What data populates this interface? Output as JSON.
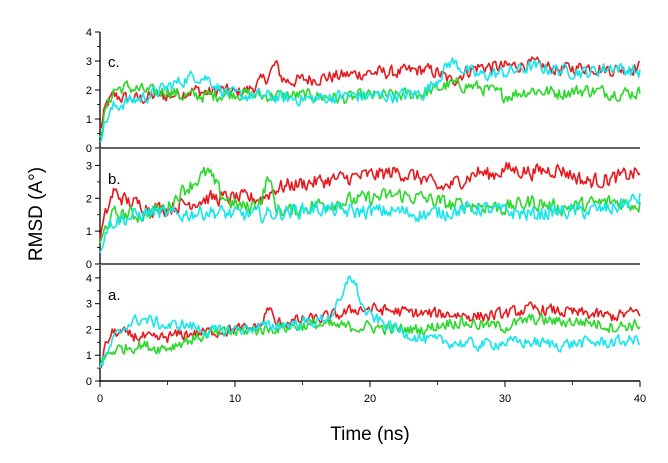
{
  "chart_data": {
    "type": "line",
    "xlabel": "Time (ns)",
    "ylabel": "RMSD (A°)",
    "xlim": [
      0,
      40
    ],
    "x_ticks": [
      "0",
      "10",
      "20",
      "30",
      "40"
    ],
    "grid": false,
    "legend": "none",
    "series_colors": [
      "#e8191c",
      "#2ad92a",
      "#16e6ec"
    ],
    "panels": [
      {
        "label": "c.",
        "ylim": [
          0,
          4
        ],
        "y_ticks": [
          "0",
          "1",
          "2",
          "3",
          "4"
        ],
        "series": [
          {
            "color": "#e8191c",
            "x": [
              0,
              0.5,
              1,
              2,
              3,
              4,
              5,
              6,
              7,
              8,
              9,
              10,
              11,
              12,
              12.5,
              13,
              13.5,
              14,
              16,
              18,
              20,
              22,
              24,
              25,
              26,
              27,
              28,
              30,
              32,
              34,
              36,
              38,
              40
            ],
            "y": [
              0.6,
              1.5,
              1.8,
              1.7,
              1.7,
              1.8,
              1.8,
              1.9,
              2.0,
              1.9,
              2.0,
              1.9,
              2.0,
              2.3,
              2.5,
              2.9,
              2.4,
              2.3,
              2.4,
              2.5,
              2.6,
              2.6,
              2.7,
              2.6,
              2.3,
              2.6,
              2.8,
              2.8,
              2.9,
              2.7,
              2.8,
              2.7,
              2.8
            ]
          },
          {
            "color": "#2ad92a",
            "x": [
              0,
              0.5,
              1,
              2,
              3,
              4,
              5,
              6,
              8,
              10,
              12,
              14,
              16,
              18,
              20,
              22,
              24,
              26,
              28,
              30,
              32,
              34,
              36,
              38,
              40
            ],
            "y": [
              0.5,
              1.4,
              2.0,
              2.1,
              2.0,
              1.9,
              2.0,
              1.8,
              1.8,
              1.9,
              1.8,
              1.8,
              1.8,
              1.7,
              1.8,
              1.8,
              1.9,
              2.2,
              2.1,
              1.8,
              2.0,
              1.9,
              2.0,
              1.9,
              1.9
            ]
          },
          {
            "color": "#16e6ec",
            "x": [
              0,
              0.5,
              1,
              2,
              3,
              4,
              5,
              6,
              7,
              8,
              9,
              10,
              12,
              14,
              16,
              18,
              20,
              22,
              24,
              25,
              26,
              27,
              28,
              30,
              32,
              34,
              36,
              38,
              40
            ],
            "y": [
              0.4,
              1.0,
              1.4,
              1.6,
              1.7,
              1.9,
              2.1,
              2.3,
              2.5,
              2.4,
              2.0,
              1.8,
              1.8,
              1.7,
              1.7,
              1.8,
              1.8,
              1.8,
              1.9,
              2.4,
              3.0,
              2.7,
              2.5,
              2.6,
              2.8,
              2.7,
              2.6,
              2.8,
              2.6
            ]
          }
        ]
      },
      {
        "label": "b.",
        "ylim": [
          0,
          3.5
        ],
        "y_ticks": [
          "0",
          "1",
          "2",
          "3"
        ],
        "series": [
          {
            "color": "#e8191c",
            "x": [
              0,
              0.5,
              1,
              2,
              3,
              4,
              5,
              6,
              8,
              10,
              12,
              13,
              14,
              16,
              18,
              20,
              22,
              24,
              25,
              26,
              27,
              28,
              29,
              30,
              32,
              34,
              36,
              38,
              40
            ],
            "y": [
              0.8,
              1.6,
              2.2,
              1.9,
              1.8,
              1.7,
              1.7,
              1.8,
              2.0,
              2.0,
              2.0,
              2.3,
              2.4,
              2.5,
              2.6,
              2.7,
              2.8,
              2.6,
              2.3,
              2.4,
              2.6,
              2.8,
              2.7,
              2.9,
              2.8,
              2.9,
              2.5,
              2.6,
              2.8
            ]
          },
          {
            "color": "#2ad92a",
            "x": [
              0,
              0.5,
              1,
              2,
              3,
              4,
              5,
              6,
              7,
              8,
              9,
              10,
              11,
              12,
              12.5,
              13,
              14,
              16,
              18,
              20,
              22,
              24,
              26,
              28,
              30,
              32,
              34,
              36,
              38,
              40
            ],
            "y": [
              0.5,
              1.2,
              1.5,
              1.5,
              1.5,
              1.6,
              1.7,
              2.2,
              2.5,
              2.8,
              2.1,
              1.8,
              1.7,
              2.0,
              2.7,
              1.7,
              1.6,
              1.8,
              1.9,
              2.0,
              2.1,
              2.0,
              1.8,
              1.8,
              1.7,
              1.9,
              1.7,
              1.8,
              1.9,
              1.8
            ]
          },
          {
            "color": "#16e6ec",
            "x": [
              0,
              0.5,
              1,
              2,
              3,
              4,
              5,
              6,
              8,
              10,
              12,
              14,
              16,
              18,
              20,
              22,
              24,
              26,
              28,
              30,
              32,
              34,
              36,
              38,
              40
            ],
            "y": [
              0.5,
              1.1,
              1.3,
              1.4,
              1.5,
              1.6,
              1.5,
              1.5,
              1.6,
              1.5,
              1.5,
              1.6,
              1.7,
              1.6,
              1.6,
              1.6,
              1.5,
              1.6,
              1.7,
              1.6,
              1.5,
              1.6,
              1.6,
              1.7,
              2.0
            ]
          }
        ]
      },
      {
        "label": "a.",
        "ylim": [
          0,
          4.5
        ],
        "y_ticks": [
          "0",
          "1",
          "2",
          "3",
          "4"
        ],
        "series": [
          {
            "color": "#e8191c",
            "x": [
              0,
              0.5,
              1,
              2,
              3,
              4,
              5,
              6,
              8,
              10,
              11,
              12,
              12.5,
              13,
              14,
              16,
              18,
              19,
              20,
              22,
              24,
              26,
              28,
              30,
              32,
              34,
              36,
              38,
              40
            ],
            "y": [
              0.5,
              1.5,
              1.9,
              1.8,
              1.7,
              1.6,
              1.7,
              1.8,
              1.9,
              2.0,
              2.0,
              2.2,
              2.9,
              2.2,
              2.3,
              2.4,
              2.6,
              2.8,
              2.8,
              2.7,
              2.6,
              2.6,
              2.5,
              2.6,
              2.8,
              2.7,
              2.6,
              2.5,
              2.7
            ]
          },
          {
            "color": "#2ad92a",
            "x": [
              0,
              0.5,
              1,
              2,
              3,
              4,
              5,
              6,
              8,
              10,
              12,
              14,
              16,
              18,
              20,
              22,
              24,
              26,
              28,
              30,
              32,
              34,
              36,
              38,
              40
            ],
            "y": [
              0.6,
              1.0,
              1.2,
              1.3,
              1.4,
              1.3,
              1.3,
              1.5,
              1.8,
              1.9,
              2.0,
              2.1,
              2.2,
              2.1,
              2.1,
              2.0,
              2.0,
              2.3,
              2.2,
              2.1,
              2.4,
              2.3,
              2.3,
              2.1,
              2.2
            ]
          },
          {
            "color": "#16e6ec",
            "x": [
              0,
              0.5,
              1,
              2,
              3,
              4,
              5,
              6,
              7,
              8,
              10,
              12,
              14,
              16,
              17,
              18,
              18.5,
              19,
              19.5,
              20,
              22,
              24,
              26,
              28,
              30,
              32,
              34,
              36,
              38,
              40
            ],
            "y": [
              0.5,
              1.0,
              1.6,
              2.2,
              2.4,
              2.3,
              2.1,
              2.2,
              2.1,
              1.9,
              2.0,
              2.1,
              2.2,
              2.3,
              2.5,
              3.2,
              4.2,
              3.6,
              2.8,
              2.5,
              2.0,
              1.6,
              1.5,
              1.4,
              1.5,
              1.5,
              1.4,
              1.5,
              1.5,
              1.6
            ]
          }
        ]
      }
    ]
  }
}
